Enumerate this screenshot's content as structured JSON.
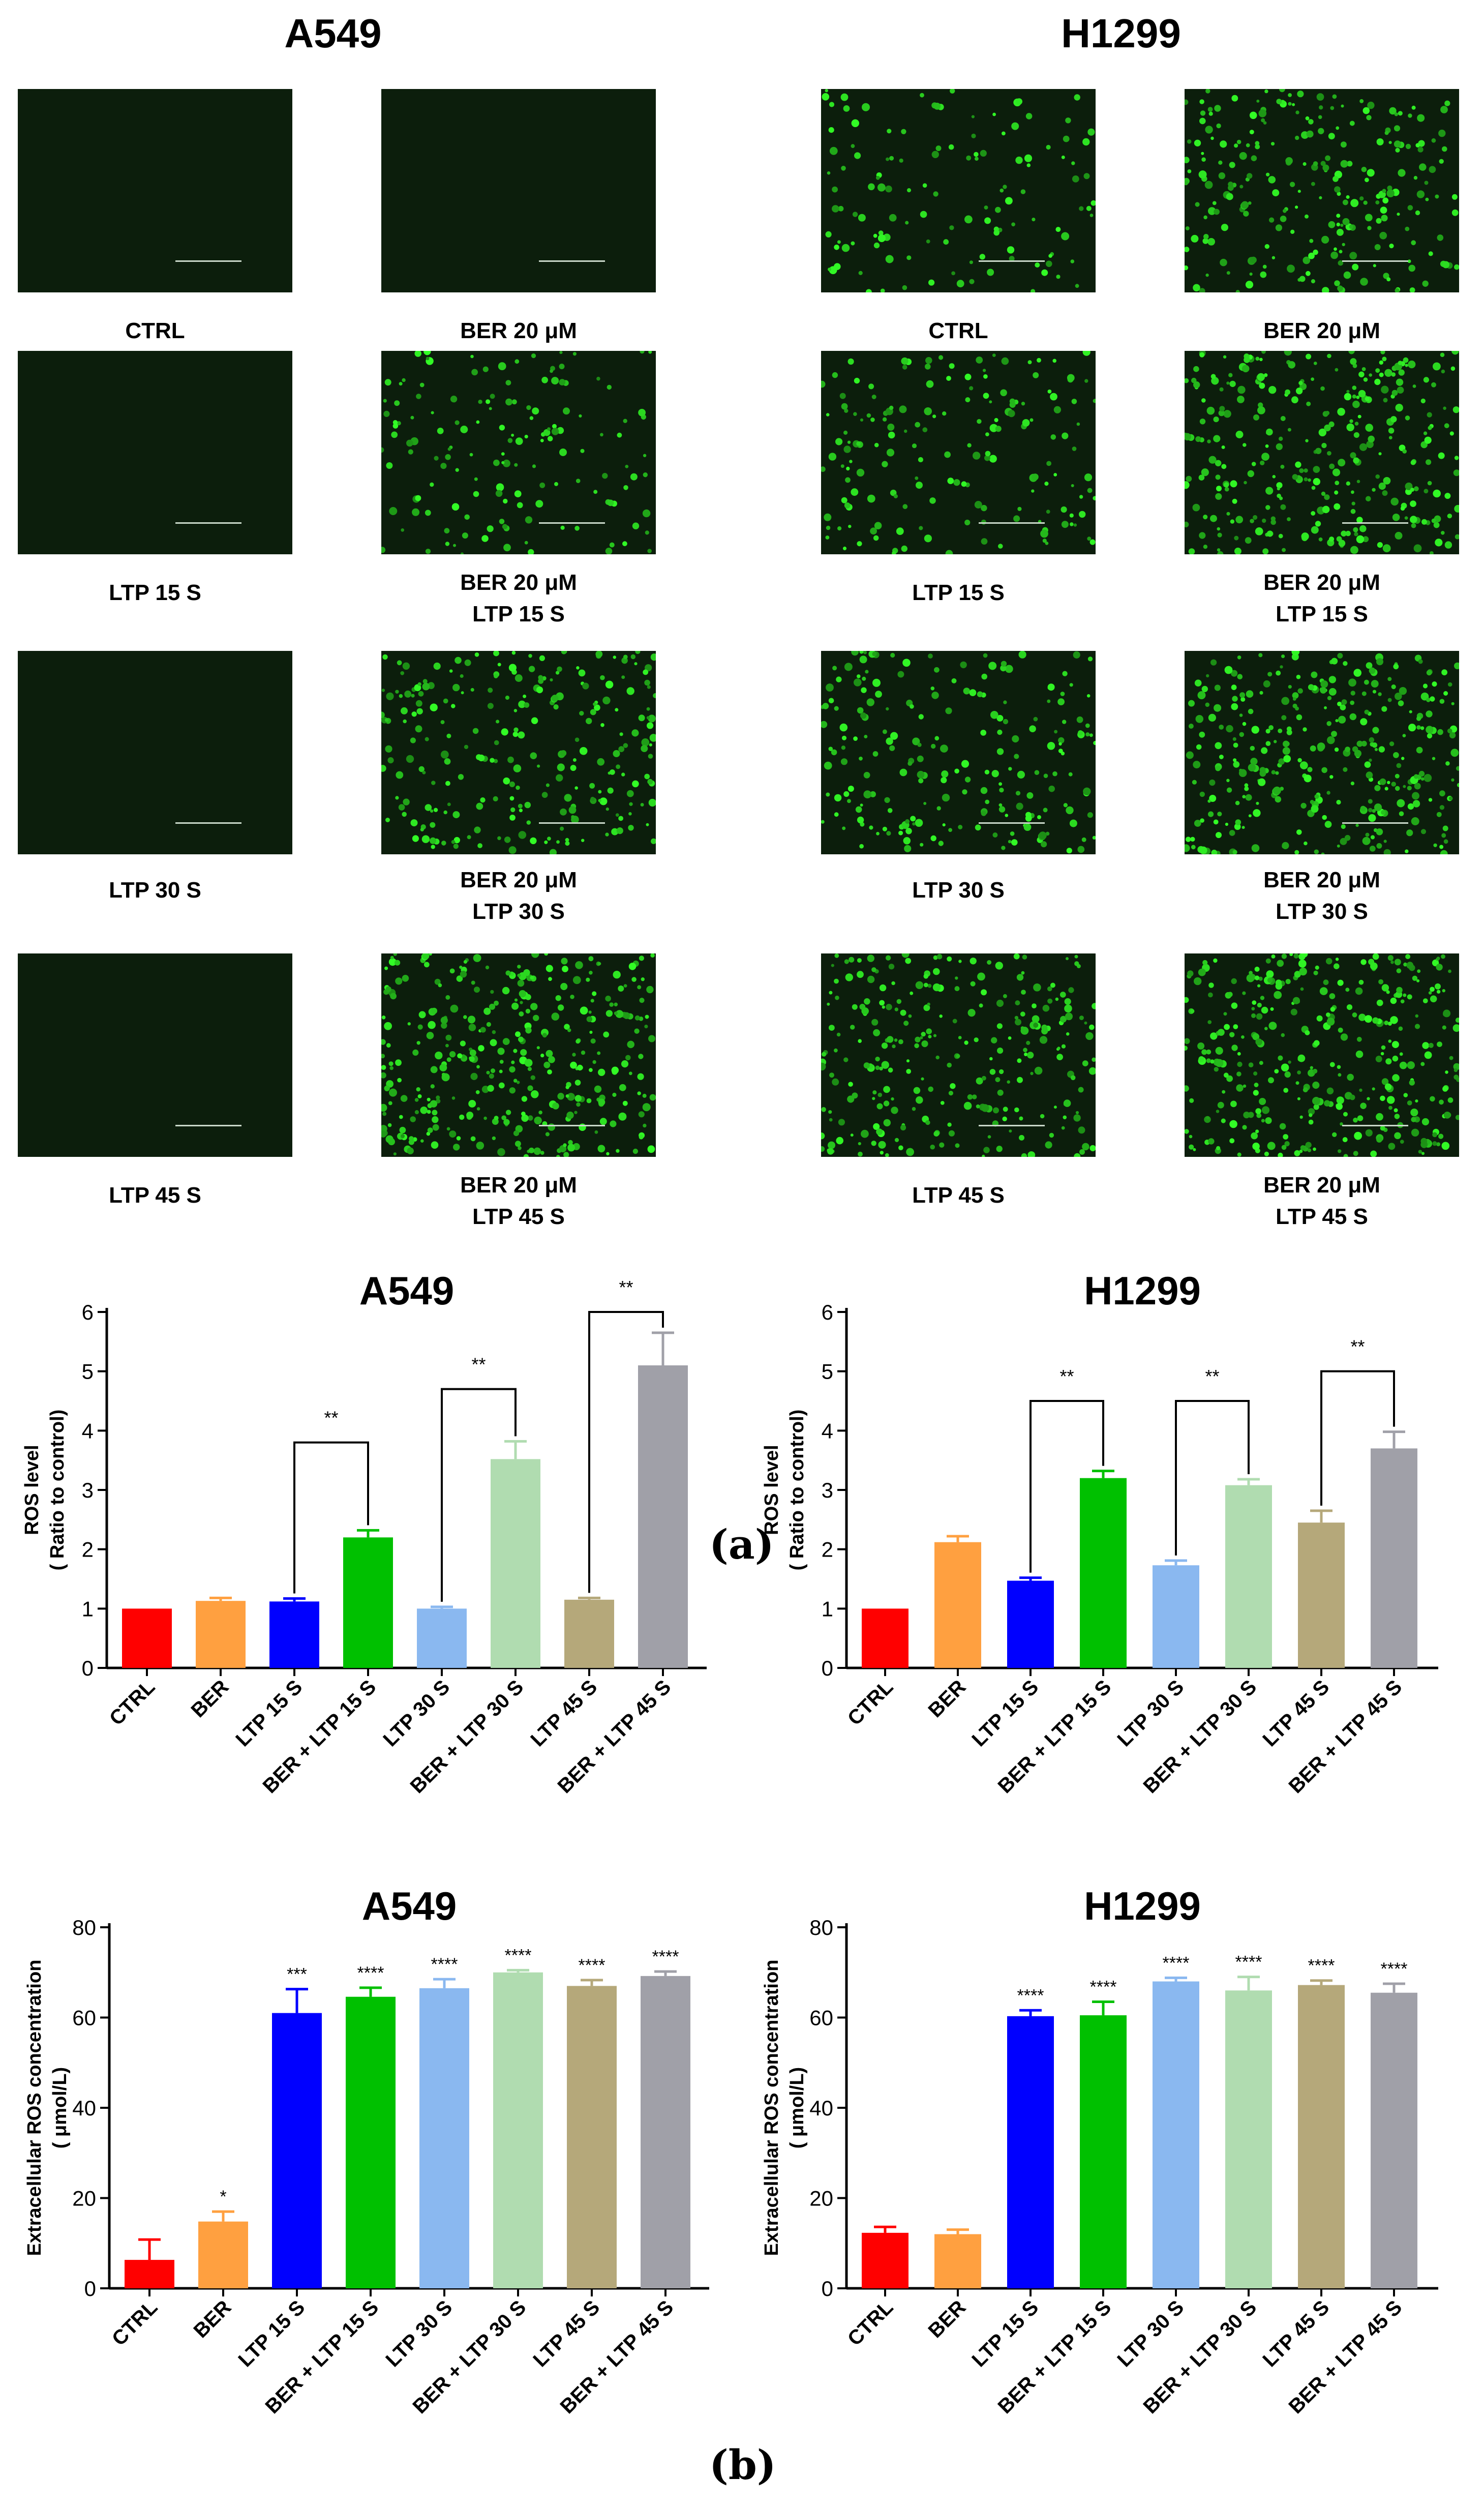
{
  "micrographs": {
    "A549": {
      "title": "A549",
      "panels": [
        {
          "caption": [
            "CTRL"
          ],
          "level": 0.0
        },
        {
          "caption": [
            "BER  20 μM"
          ],
          "level": 0.0
        },
        {
          "caption": [
            "LTP  15 S"
          ],
          "level": 0.0
        },
        {
          "caption": [
            "BER  20 μM",
            "LTP  15 S"
          ],
          "level": 0.35
        },
        {
          "caption": [
            "LTP  30 S"
          ],
          "level": 0.0
        },
        {
          "caption": [
            "BER  20 μM",
            "LTP  30 S"
          ],
          "level": 0.6
        },
        {
          "caption": [
            "LTP  45 S"
          ],
          "level": 0.0
        },
        {
          "caption": [
            "BER  20 μM",
            "LTP  45 S"
          ],
          "level": 0.85
        }
      ]
    },
    "H1299": {
      "title": "H1299",
      "panels": [
        {
          "caption": [
            "CTRL"
          ],
          "level": 0.3
        },
        {
          "caption": [
            "BER  20 μM"
          ],
          "level": 0.6
        },
        {
          "caption": [
            "LTP  15 S"
          ],
          "level": 0.4
        },
        {
          "caption": [
            "BER  20 μM",
            "LTP  15 S"
          ],
          "level": 0.75
        },
        {
          "caption": [
            "LTP  30 S"
          ],
          "level": 0.5
        },
        {
          "caption": [
            "BER  20 μM",
            "LTP  30 S"
          ],
          "level": 0.8
        },
        {
          "caption": [
            "LTP  45 S"
          ],
          "level": 0.65
        },
        {
          "caption": [
            "BER  20 μM",
            "LTP  45 S"
          ],
          "level": 0.85
        }
      ]
    }
  },
  "figure_labels": {
    "a": "(a)",
    "b": "(b)"
  },
  "colors": [
    "#ff0000",
    "#ffa040",
    "#0000ff",
    "#00c000",
    "#8ab8f0",
    "#b0dcb0",
    "#b5a87a",
    "#a0a0a8"
  ],
  "chart_data": [
    {
      "type": "bar",
      "title": "A549",
      "ylabel": [
        "ROS level",
        "( Ratio to control)"
      ],
      "xlabel": "",
      "categories": [
        "CTRL",
        "BER",
        "LTP 15 S",
        "BER + LTP 15 S",
        "LTP 30 S",
        "BER + LTP 30 S",
        "LTP 45 S",
        "BER + LTP 45 S"
      ],
      "values": [
        1.0,
        1.13,
        1.12,
        2.2,
        1.0,
        3.52,
        1.15,
        5.1
      ],
      "errors": [
        0.0,
        0.05,
        0.05,
        0.12,
        0.03,
        0.3,
        0.03,
        0.55
      ],
      "ylim": [
        0,
        6
      ],
      "yticks": [
        0,
        1,
        2,
        3,
        4,
        5,
        6
      ],
      "comparisons": [
        {
          "from": 2,
          "to": 3,
          "label": "**",
          "height": 3.8
        },
        {
          "from": 4,
          "to": 5,
          "label": "**",
          "height": 4.7
        },
        {
          "from": 6,
          "to": 7,
          "label": "**",
          "height": 6.0
        }
      ],
      "bar_labels": []
    },
    {
      "type": "bar",
      "title": "H1299",
      "ylabel": [
        "ROS level",
        "( Ratio to control)"
      ],
      "xlabel": "",
      "categories": [
        "CTRL",
        "BER",
        "LTP 15 S",
        "BER + LTP 15 S",
        "LTP 30 S",
        "BER + LTP 30 S",
        "LTP 45 S",
        "BER + LTP 45 S"
      ],
      "values": [
        1.0,
        2.12,
        1.47,
        3.2,
        1.73,
        3.08,
        2.45,
        3.7
      ],
      "errors": [
        0.0,
        0.1,
        0.05,
        0.12,
        0.08,
        0.1,
        0.2,
        0.28
      ],
      "ylim": [
        0,
        6
      ],
      "yticks": [
        0,
        1,
        2,
        3,
        4,
        5,
        6
      ],
      "comparisons": [
        {
          "from": 2,
          "to": 3,
          "label": "**",
          "height": 4.5
        },
        {
          "from": 4,
          "to": 5,
          "label": "**",
          "height": 4.5
        },
        {
          "from": 6,
          "to": 7,
          "label": "**",
          "height": 5.0
        }
      ],
      "bar_labels": []
    },
    {
      "type": "bar",
      "title": "A549",
      "ylabel": [
        "Extracellular ROS concentration",
        "( μmol/L)"
      ],
      "xlabel": "",
      "categories": [
        "CTRL",
        "BER",
        "LTP 15 S",
        "BER + LTP 15 S",
        "LTP 30 S",
        "BER + LTP 30 S",
        "LTP 45 S",
        "BER + LTP 45 S"
      ],
      "values": [
        6.3,
        14.8,
        61.0,
        64.6,
        66.5,
        70.0,
        67.0,
        69.2
      ],
      "errors": [
        4.5,
        2.2,
        5.3,
        2.0,
        2.0,
        0.5,
        1.3,
        1.0
      ],
      "ylim": [
        0,
        80
      ],
      "yticks": [
        0,
        20,
        40,
        60,
        80
      ],
      "comparisons": [],
      "bar_labels": [
        "",
        "*",
        "***",
        "****",
        "****",
        "****",
        "****",
        "****"
      ]
    },
    {
      "type": "bar",
      "title": "H1299",
      "ylabel": [
        "Extracellular ROS concentration",
        "( μmol/L)"
      ],
      "xlabel": "",
      "categories": [
        "CTRL",
        "BER",
        "LTP 15 S",
        "BER + LTP 15 S",
        "LTP 30 S",
        "BER + LTP 30 S",
        "LTP 45 S",
        "BER + LTP 45 S"
      ],
      "values": [
        12.3,
        12.0,
        60.3,
        60.5,
        68.0,
        66.0,
        67.2,
        65.5
      ],
      "errors": [
        1.3,
        1.0,
        1.3,
        3.0,
        0.8,
        3.0,
        1.0,
        2.0
      ],
      "ylim": [
        0,
        80
      ],
      "yticks": [
        0,
        20,
        40,
        60,
        80
      ],
      "comparisons": [],
      "bar_labels": [
        "",
        "",
        "****",
        "****",
        "****",
        "****",
        "****",
        "****"
      ]
    }
  ]
}
